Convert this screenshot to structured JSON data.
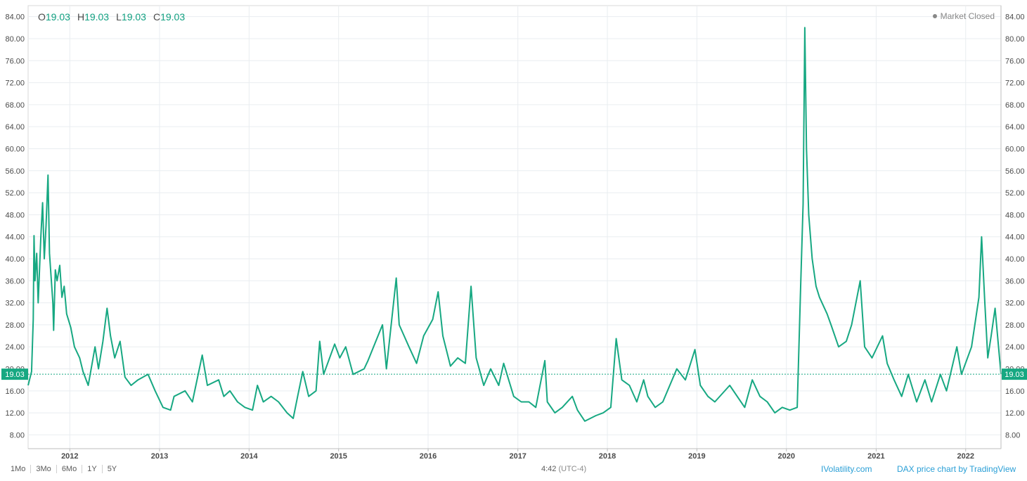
{
  "header": {
    "ohlc": [
      {
        "label": "O",
        "value": "19.03"
      },
      {
        "label": "H",
        "value": "19.03"
      },
      {
        "label": "L",
        "value": "19.03"
      },
      {
        "label": "C",
        "value": "19.03"
      }
    ],
    "market_status": "Market Closed"
  },
  "footer": {
    "ranges": [
      "1Mo",
      "3Mo",
      "6Mo",
      "1Y",
      "5Y"
    ],
    "time": "4:42",
    "timezone": "(UTC-4)",
    "credit_ivolatility": "IVolatility.com",
    "credit_tradingview": "DAX price chart by TradingView"
  },
  "colors": {
    "line": "#17a882",
    "grid": "#e9edf0",
    "price_tag": "#17a882",
    "text": "#4a4a4a",
    "link": "#2a9fd6"
  },
  "chart_data": {
    "type": "line",
    "title": "",
    "xlabel": "",
    "ylabel": "",
    "ylim": [
      5.5,
      86
    ],
    "y_ticks": [
      "8.00",
      "12.00",
      "16.00",
      "20.00",
      "24.00",
      "28.00",
      "32.00",
      "36.00",
      "40.00",
      "44.00",
      "48.00",
      "52.00",
      "56.00",
      "60.00",
      "64.00",
      "68.00",
      "72.00",
      "76.00",
      "80.00",
      "84.00"
    ],
    "x_ticks": [
      "2012",
      "2013",
      "2014",
      "2015",
      "2016",
      "2017",
      "2018",
      "2019",
      "2020",
      "2021",
      "2022"
    ],
    "x_range": [
      "2011-07-15",
      "2022-05-25"
    ],
    "last_value": 19.03,
    "last_value_label": "19.03",
    "grid": true,
    "series": [
      {
        "points": [
          [
            "2011-07-15",
            17.0
          ],
          [
            "2011-07-29",
            19.5
          ],
          [
            "2011-08-05",
            29.0
          ],
          [
            "2011-08-08",
            44.2
          ],
          [
            "2011-08-12",
            36.0
          ],
          [
            "2011-08-19",
            41.0
          ],
          [
            "2011-08-25",
            32.0
          ],
          [
            "2011-09-05",
            44.0
          ],
          [
            "2011-09-12",
            50.2
          ],
          [
            "2011-09-19",
            40.0
          ],
          [
            "2011-09-26",
            46.0
          ],
          [
            "2011-10-04",
            55.2
          ],
          [
            "2011-10-10",
            41.0
          ],
          [
            "2011-10-17",
            36.5
          ],
          [
            "2011-10-24",
            32.0
          ],
          [
            "2011-10-27",
            27.0
          ],
          [
            "2011-11-03",
            38.0
          ],
          [
            "2011-11-10",
            36.0
          ],
          [
            "2011-11-21",
            38.8
          ],
          [
            "2011-11-30",
            33.0
          ],
          [
            "2011-12-09",
            35.0
          ],
          [
            "2011-12-19",
            30.0
          ],
          [
            "2012-01-05",
            27.5
          ],
          [
            "2012-01-20",
            24.0
          ],
          [
            "2012-02-10",
            22.0
          ],
          [
            "2012-02-24",
            19.5
          ],
          [
            "2012-03-16",
            17.0
          ],
          [
            "2012-03-30",
            20.5
          ],
          [
            "2012-04-13",
            24.0
          ],
          [
            "2012-04-27",
            20.0
          ],
          [
            "2012-05-15",
            25.0
          ],
          [
            "2012-06-01",
            31.0
          ],
          [
            "2012-06-15",
            26.0
          ],
          [
            "2012-07-02",
            22.0
          ],
          [
            "2012-07-24",
            25.0
          ],
          [
            "2012-08-13",
            18.5
          ],
          [
            "2012-09-07",
            17.0
          ],
          [
            "2012-10-05",
            18.0
          ],
          [
            "2012-11-15",
            19.0
          ],
          [
            "2012-12-14",
            16.0
          ],
          [
            "2013-01-15",
            13.0
          ],
          [
            "2013-02-15",
            12.5
          ],
          [
            "2013-03-01",
            15.0
          ],
          [
            "2013-04-15",
            16.0
          ],
          [
            "2013-05-15",
            14.0
          ],
          [
            "2013-06-24",
            22.5
          ],
          [
            "2013-07-15",
            17.0
          ],
          [
            "2013-08-30",
            18.0
          ],
          [
            "2013-09-20",
            15.0
          ],
          [
            "2013-10-15",
            16.0
          ],
          [
            "2013-11-15",
            14.0
          ],
          [
            "2013-12-15",
            13.0
          ],
          [
            "2014-01-15",
            12.5
          ],
          [
            "2014-02-04",
            17.0
          ],
          [
            "2014-02-28",
            14.0
          ],
          [
            "2014-04-01",
            15.0
          ],
          [
            "2014-05-01",
            14.0
          ],
          [
            "2014-06-05",
            12.0
          ],
          [
            "2014-06-30",
            11.0
          ],
          [
            "2014-07-18",
            15.0
          ],
          [
            "2014-08-08",
            19.5
          ],
          [
            "2014-09-01",
            15.0
          ],
          [
            "2014-10-01",
            16.0
          ],
          [
            "2014-10-16",
            25.0
          ],
          [
            "2014-11-01",
            19.0
          ],
          [
            "2014-12-16",
            24.5
          ],
          [
            "2015-01-06",
            22.0
          ],
          [
            "2015-01-30",
            24.0
          ],
          [
            "2015-03-01",
            19.0
          ],
          [
            "2015-04-15",
            20.0
          ],
          [
            "2015-05-01",
            21.5
          ],
          [
            "2015-06-29",
            28.0
          ],
          [
            "2015-07-15",
            20.0
          ],
          [
            "2015-08-24",
            36.5
          ],
          [
            "2015-09-05",
            28.0
          ],
          [
            "2015-10-15",
            24.0
          ],
          [
            "2015-11-15",
            21.0
          ],
          [
            "2015-12-14",
            26.0
          ],
          [
            "2016-01-20",
            29.0
          ],
          [
            "2016-02-11",
            34.0
          ],
          [
            "2016-03-01",
            26.0
          ],
          [
            "2016-04-01",
            20.5
          ],
          [
            "2016-05-01",
            22.0
          ],
          [
            "2016-06-01",
            21.0
          ],
          [
            "2016-06-24",
            35.0
          ],
          [
            "2016-07-15",
            22.0
          ],
          [
            "2016-08-15",
            17.0
          ],
          [
            "2016-09-12",
            20.0
          ],
          [
            "2016-10-15",
            17.0
          ],
          [
            "2016-11-04",
            21.0
          ],
          [
            "2016-12-15",
            15.0
          ],
          [
            "2017-01-15",
            14.0
          ],
          [
            "2017-02-15",
            14.0
          ],
          [
            "2017-03-15",
            13.0
          ],
          [
            "2017-04-21",
            21.5
          ],
          [
            "2017-05-01",
            14.0
          ],
          [
            "2017-06-01",
            12.0
          ],
          [
            "2017-07-01",
            13.0
          ],
          [
            "2017-08-11",
            15.0
          ],
          [
            "2017-09-01",
            12.5
          ],
          [
            "2017-10-01",
            10.5
          ],
          [
            "2017-11-15",
            11.5
          ],
          [
            "2017-12-15",
            12.0
          ],
          [
            "2018-01-15",
            13.0
          ],
          [
            "2018-02-06",
            25.5
          ],
          [
            "2018-03-01",
            18.0
          ],
          [
            "2018-04-01",
            17.0
          ],
          [
            "2018-05-01",
            14.0
          ],
          [
            "2018-05-29",
            18.0
          ],
          [
            "2018-06-15",
            15.0
          ],
          [
            "2018-07-15",
            13.0
          ],
          [
            "2018-08-15",
            14.0
          ],
          [
            "2018-10-11",
            20.0
          ],
          [
            "2018-11-15",
            18.0
          ],
          [
            "2018-12-24",
            23.5
          ],
          [
            "2019-01-15",
            17.0
          ],
          [
            "2019-02-15",
            15.0
          ],
          [
            "2019-03-15",
            14.0
          ],
          [
            "2019-05-15",
            17.0
          ],
          [
            "2019-07-15",
            13.0
          ],
          [
            "2019-08-15",
            18.0
          ],
          [
            "2019-09-15",
            15.0
          ],
          [
            "2019-10-15",
            14.0
          ],
          [
            "2019-11-15",
            12.0
          ],
          [
            "2019-12-15",
            13.0
          ],
          [
            "2020-01-15",
            12.5
          ],
          [
            "2020-02-14",
            13.0
          ],
          [
            "2020-02-28",
            35.0
          ],
          [
            "2020-03-09",
            50.0
          ],
          [
            "2020-03-16",
            82.0
          ],
          [
            "2020-03-23",
            60.0
          ],
          [
            "2020-04-01",
            48.0
          ],
          [
            "2020-04-15",
            40.0
          ],
          [
            "2020-05-01",
            35.0
          ],
          [
            "2020-05-15",
            33.0
          ],
          [
            "2020-06-15",
            30.0
          ],
          [
            "2020-07-01",
            28.0
          ],
          [
            "2020-08-01",
            24.0
          ],
          [
            "2020-09-01",
            25.0
          ],
          [
            "2020-09-23",
            28.0
          ],
          [
            "2020-10-28",
            36.0
          ],
          [
            "2020-11-15",
            24.0
          ],
          [
            "2020-12-15",
            22.0
          ],
          [
            "2021-01-27",
            26.0
          ],
          [
            "2021-02-15",
            21.0
          ],
          [
            "2021-03-15",
            18.0
          ],
          [
            "2021-04-15",
            15.0
          ],
          [
            "2021-05-12",
            19.0
          ],
          [
            "2021-06-15",
            14.0
          ],
          [
            "2021-07-19",
            18.0
          ],
          [
            "2021-08-15",
            14.0
          ],
          [
            "2021-09-20",
            19.0
          ],
          [
            "2021-10-15",
            16.0
          ],
          [
            "2021-11-26",
            24.0
          ],
          [
            "2021-12-15",
            19.0
          ],
          [
            "2022-01-25",
            24.0
          ],
          [
            "2022-02-24",
            33.0
          ],
          [
            "2022-03-07",
            44.0
          ],
          [
            "2022-03-20",
            32.0
          ],
          [
            "2022-04-01",
            22.0
          ],
          [
            "2022-04-15",
            26.0
          ],
          [
            "2022-05-01",
            31.0
          ],
          [
            "2022-05-15",
            24.0
          ],
          [
            "2022-05-25",
            19.03
          ]
        ]
      }
    ]
  }
}
